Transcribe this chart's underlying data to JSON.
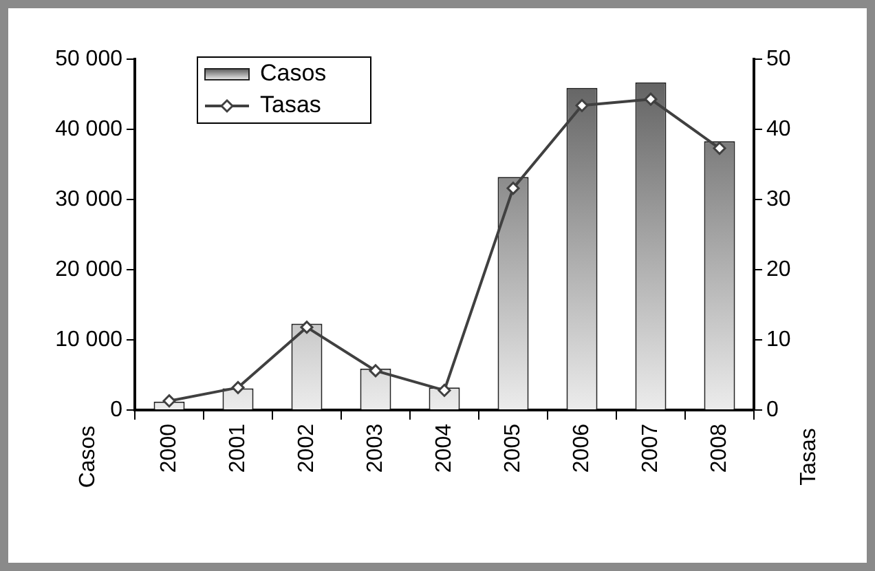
{
  "chart_data": {
    "type": "bar",
    "categories": [
      "2000",
      "2001",
      "2002",
      "2003",
      "2004",
      "2005",
      "2006",
      "2007",
      "2008"
    ],
    "series": [
      {
        "name": "Casos",
        "color": "#5a5a5a",
        "values": [
          1200,
          3100,
          12300,
          5900,
          3200,
          33200,
          45900,
          46700,
          38300
        ]
      },
      {
        "name": "Tasas",
        "type": "line",
        "axis": "y2",
        "color": "#404040",
        "marker": "diamond",
        "values": [
          1.3,
          3.2,
          11.8,
          5.6,
          2.8,
          31.6,
          43.4,
          44.3,
          37.3
        ]
      }
    ],
    "ylabel": "Casos",
    "y2label": "Tasas",
    "ylim": [
      0,
      50000
    ],
    "yticks": [
      {
        "value": 0,
        "label": "0"
      },
      {
        "value": 10000,
        "label": "10 000"
      },
      {
        "value": 20000,
        "label": "20 000"
      },
      {
        "value": 30000,
        "label": "30 000"
      },
      {
        "value": 40000,
        "label": "40 000"
      },
      {
        "value": 50000,
        "label": "50 000"
      }
    ],
    "y2lim": [
      0,
      50
    ],
    "y2ticks": [
      0,
      10,
      20,
      30,
      40,
      50
    ],
    "grid": false,
    "legend": "top left"
  }
}
